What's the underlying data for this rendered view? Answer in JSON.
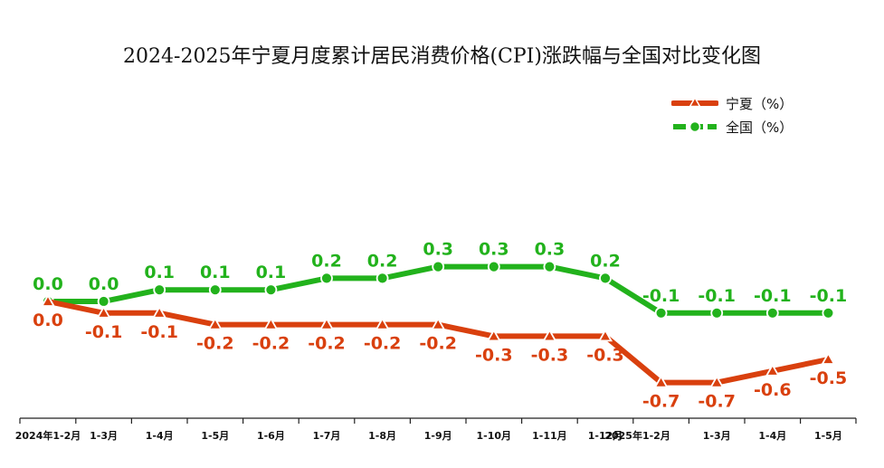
{
  "chart_data": {
    "type": "line",
    "title": "2024-2025年宁夏月度累计居民消费价格(CPI)涨跌幅与全国对比变化图",
    "categories": [
      "2024年1-2月",
      "1-3月",
      "1-4月",
      "1-5月",
      "1-6月",
      "1-7月",
      "1-8月",
      "1-9月",
      "1-10月",
      "1-11月",
      "1-12月",
      "2025年1-2月",
      "1-3月",
      "1-4月",
      "1-5月"
    ],
    "series": [
      {
        "name": "宁夏（%）",
        "values": [
          0.0,
          -0.1,
          -0.1,
          -0.2,
          -0.2,
          -0.2,
          -0.2,
          -0.2,
          -0.3,
          -0.3,
          -0.3,
          -0.7,
          -0.7,
          -0.6,
          -0.5
        ],
        "labels": [
          "0.0",
          "-0.1",
          "-0.1",
          "-0.2",
          "-0.2",
          "-0.2",
          "-0.2",
          "-0.2",
          "-0.3",
          "-0.3",
          "-0.3",
          "-0.7",
          "-0.7",
          "-0.6",
          "-0.5"
        ],
        "color": "#d9400e",
        "marker": "triangle"
      },
      {
        "name": "全国（%）",
        "values": [
          0.0,
          0.0,
          0.1,
          0.1,
          0.1,
          0.2,
          0.2,
          0.3,
          0.3,
          0.3,
          0.2,
          -0.1,
          -0.1,
          -0.1,
          -0.1
        ],
        "labels": [
          "0.0",
          "0.0",
          "0.1",
          "0.1",
          "0.1",
          "0.2",
          "0.2",
          "0.3",
          "0.3",
          "0.3",
          "0.2",
          "-0.1",
          "-0.1",
          "-0.1",
          "-0.1"
        ],
        "color": "#22b21c",
        "marker": "circle"
      }
    ],
    "legend_position": "top-right",
    "grid": false
  }
}
